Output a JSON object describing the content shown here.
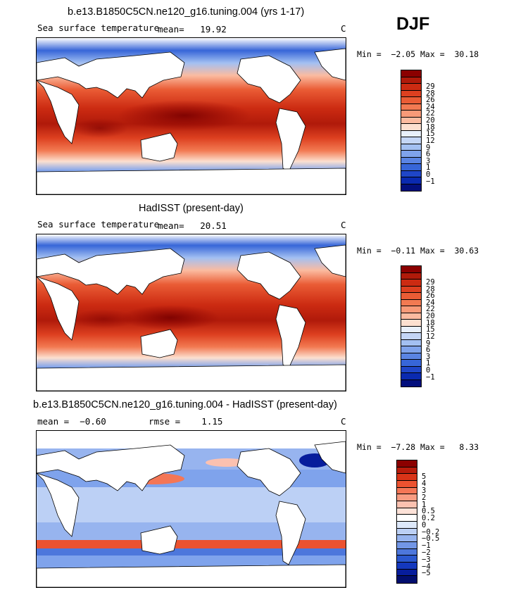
{
  "season": "DJF",
  "panels": [
    {
      "id": "model",
      "title": "b.e13.B1850C5CN.ne120_g16.tuning.004 (yrs 1-17)",
      "variable": "Sea surface temperature",
      "stat_text": "mean=   19.92",
      "units": "C",
      "min_max": "Min =  −2.05 Max =  30.18",
      "colorbar": {
        "colors": [
          "#8b0000",
          "#b01a0a",
          "#cc2b12",
          "#dd4020",
          "#ea5c35",
          "#f27a52",
          "#f89a78",
          "#fbbba0",
          "#fce0d0",
          "#e8f0fb",
          "#c4d6f6",
          "#a3c0f2",
          "#7fa3ec",
          "#5a84e3",
          "#3766d8",
          "#1f46c8",
          "#0a2ab0",
          "#030f7d"
        ],
        "labels": [
          "29",
          "28",
          "26",
          "24",
          "22",
          "20",
          "18",
          "15",
          "12",
          "9",
          "6",
          "3",
          "1",
          "0",
          "−1"
        ]
      }
    },
    {
      "id": "obs",
      "title": "HadISST (present-day)",
      "variable": "Sea surface temperature",
      "stat_text": "mean=   20.51",
      "units": "C",
      "min_max": "Min =  −0.11 Max =  30.63",
      "colorbar": {
        "colors": [
          "#8b0000",
          "#b01a0a",
          "#cc2b12",
          "#dd4020",
          "#ea5c35",
          "#f27a52",
          "#f89a78",
          "#fbbba0",
          "#fce0d0",
          "#e8f0fb",
          "#c4d6f6",
          "#a3c0f2",
          "#7fa3ec",
          "#5a84e3",
          "#3766d8",
          "#1f46c8",
          "#0a2ab0",
          "#030f7d"
        ],
        "labels": [
          "29",
          "28",
          "26",
          "24",
          "22",
          "20",
          "18",
          "15",
          "12",
          "9",
          "6",
          "3",
          "1",
          "0",
          "−1"
        ]
      }
    },
    {
      "id": "diff",
      "title": "b.e13.B1850C5CN.ne120_g16.tuning.004 - HadISST (present-day)",
      "variable": "",
      "stat_text": "mean =  −0.60        rmse =    1.15",
      "units": "C",
      "min_max": "Min =  −7.28 Max =   8.33",
      "colorbar": {
        "colors": [
          "#8b0000",
          "#b81c0c",
          "#d93418",
          "#eb5230",
          "#f47656",
          "#f89c82",
          "#fbc1b0",
          "#fde2d8",
          "#ffffff",
          "#dde8fa",
          "#bcd0f5",
          "#97b4ef",
          "#7296e6",
          "#4d77dc",
          "#2b58cf",
          "#1438be",
          "#071d9c",
          "#020e6e"
        ],
        "labels": [
          "5",
          "4",
          "3",
          "2",
          "1",
          "0.5",
          "0.2",
          "0",
          "−0.2",
          "−0.5",
          "−1",
          "−2",
          "−3",
          "−4",
          "−5"
        ]
      }
    }
  ]
}
